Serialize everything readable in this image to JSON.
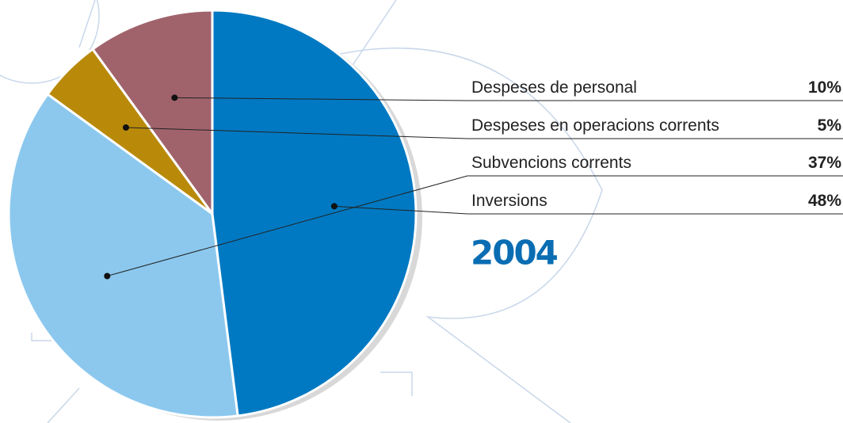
{
  "chart_data": {
    "type": "pie",
    "title": "2004",
    "categories": [
      "Despeses de personal",
      "Despeses en operacions corrents",
      "Subvencions corrents",
      "Inversions"
    ],
    "values": [
      10,
      5,
      37,
      48
    ],
    "value_labels": [
      "10%",
      "5%",
      "37%",
      "48%"
    ],
    "colors": [
      "#a0636c",
      "#b98a0a",
      "#8cc8ee",
      "#0079c2"
    ]
  }
}
